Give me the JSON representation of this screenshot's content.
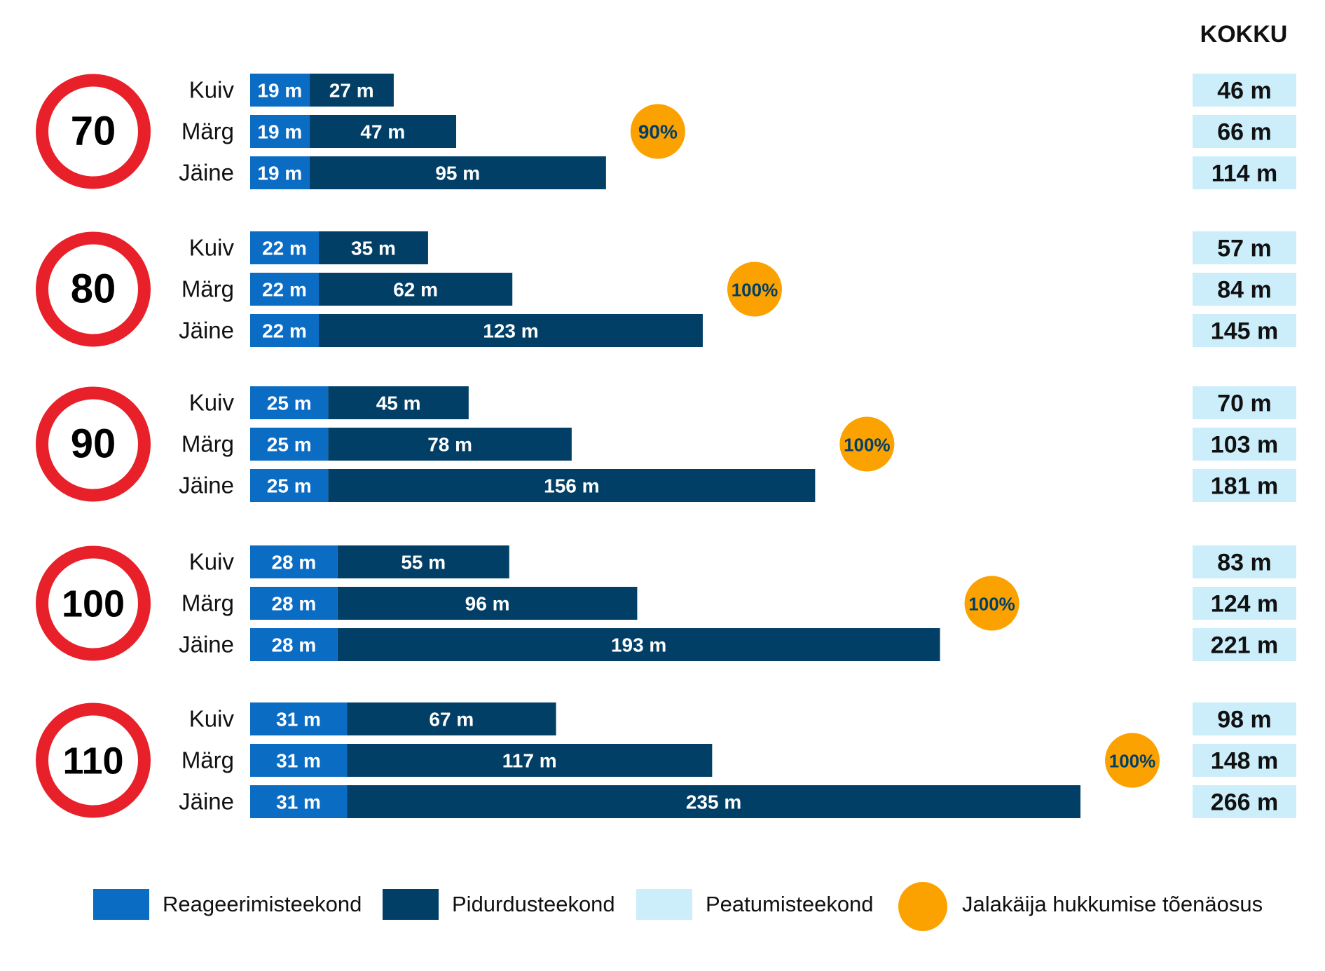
{
  "chart_data": {
    "type": "bar",
    "stacked": true,
    "orientation": "horizontal",
    "total_header": "KOKKU",
    "unit": "m",
    "colors": {
      "reaction": "#0b6cc4",
      "braking": "#023f66",
      "stopping": "#cceefb",
      "pedestrian": "#fba200",
      "sign_ring": "#e8202a"
    },
    "legend": [
      {
        "key": "reaction",
        "label": "Reageerimisteekond"
      },
      {
        "key": "braking",
        "label": "Pidurdusteekond"
      },
      {
        "key": "stopping",
        "label": "Peatumisteekond"
      },
      {
        "key": "pedestrian",
        "label": "Jalakäija hukkumise tõenäosus"
      }
    ],
    "groups": [
      {
        "speed": "70",
        "fatality": "90%",
        "fatality_row": 1,
        "rows": [
          {
            "condition": "Kuiv",
            "reaction": 19,
            "braking": 27,
            "total": 46
          },
          {
            "condition": "Märg",
            "reaction": 19,
            "braking": 47,
            "total": 66
          },
          {
            "condition": "Jäine",
            "reaction": 19,
            "braking": 95,
            "total": 114
          }
        ]
      },
      {
        "speed": "80",
        "fatality": "100%",
        "fatality_row": 1,
        "rows": [
          {
            "condition": "Kuiv",
            "reaction": 22,
            "braking": 35,
            "total": 57
          },
          {
            "condition": "Märg",
            "reaction": 22,
            "braking": 62,
            "total": 84
          },
          {
            "condition": "Jäine",
            "reaction": 22,
            "braking": 123,
            "total": 145
          }
        ]
      },
      {
        "speed": "90",
        "fatality": "100%",
        "fatality_row": 1,
        "rows": [
          {
            "condition": "Kuiv",
            "reaction": 25,
            "braking": 45,
            "total": 70
          },
          {
            "condition": "Märg",
            "reaction": 25,
            "braking": 78,
            "total": 103
          },
          {
            "condition": "Jäine",
            "reaction": 25,
            "braking": 156,
            "total": 181
          }
        ]
      },
      {
        "speed": "100",
        "fatality": "100%",
        "fatality_row": 1,
        "rows": [
          {
            "condition": "Kuiv",
            "reaction": 28,
            "braking": 55,
            "total": 83
          },
          {
            "condition": "Märg",
            "reaction": 28,
            "braking": 96,
            "total": 124
          },
          {
            "condition": "Jäine",
            "reaction": 28,
            "braking": 193,
            "total": 221
          }
        ]
      },
      {
        "speed": "110",
        "fatality": "100%",
        "fatality_row": 1,
        "rows": [
          {
            "condition": "Kuiv",
            "reaction": 31,
            "braking": 67,
            "total": 98
          },
          {
            "condition": "Märg",
            "reaction": 31,
            "braking": 117,
            "total": 148
          },
          {
            "condition": "Jäine",
            "reaction": 31,
            "braking": 235,
            "total": 266
          }
        ]
      }
    ]
  }
}
